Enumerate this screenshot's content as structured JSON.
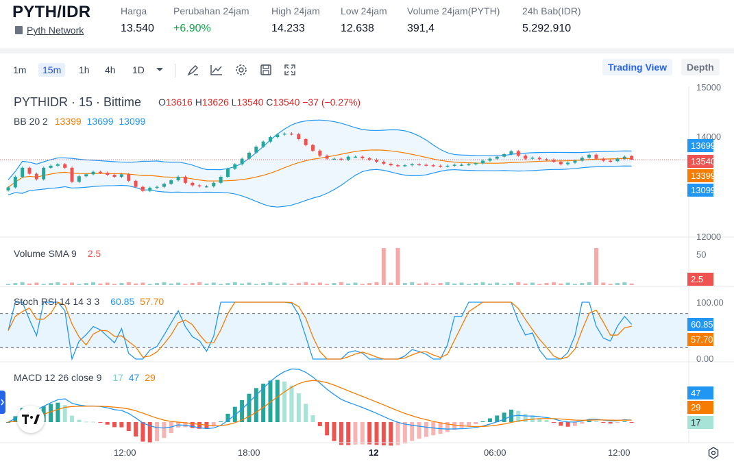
{
  "header": {
    "pair": "PYTH/IDR",
    "network": "Pyth Network",
    "stats": [
      {
        "label": "Harga",
        "value": "13.540",
        "color": "#111827"
      },
      {
        "label": "Perubahan 24jam",
        "value": "+6.90%",
        "color": "#16a34a"
      },
      {
        "label": "High 24jam",
        "value": "14.233",
        "color": "#111827"
      },
      {
        "label": "Low 24jam",
        "value": "12.638",
        "color": "#111827"
      },
      {
        "label": "Volume 24jam(PYTH)",
        "value": "391,4",
        "color": "#111827"
      },
      {
        "label": "24h Bab(IDR)",
        "value": "5.292.910",
        "color": "#111827"
      }
    ]
  },
  "toolbar": {
    "timeframes": [
      "1m",
      "15m",
      "1h",
      "4h",
      "1D"
    ],
    "active_timeframe": "15m",
    "tools": [
      "draw-pen-icon",
      "indicators-icon",
      "settings-gear-icon",
      "save-icon",
      "fullscreen-icon"
    ],
    "view_trading": "Trading View",
    "view_depth": "Depth"
  },
  "main_pane": {
    "symbol": "PYTHIDR · 15 · Bittime",
    "o_label": "O",
    "o": "13616",
    "h_label": "H",
    "h": "13626",
    "l_label": "L",
    "l": "13540",
    "c_label": "C",
    "c": "13540",
    "change": "−37 (−0.27%)",
    "bb_label": "BB 20 2",
    "bb_basis": "13399",
    "bb_upper": "13699",
    "bb_lower": "13099",
    "price_labels": {
      "upper": "13699",
      "last": "13540",
      "basis": "13399",
      "lower": "13099"
    },
    "axis": {
      "top": "15000",
      "mid": "14000",
      "bottom": "12000"
    }
  },
  "volume_pane": {
    "label": "Volume SMA 9",
    "value": "2.5",
    "axis_top": "50",
    "badge": "2.5"
  },
  "stoch_pane": {
    "label": "Stoch RSI 14 14 3 3",
    "k": "60.85",
    "d": "57.70",
    "axis_top": "100.00",
    "axis_bottom": "0.00",
    "badge_k": "60.85",
    "badge_d": "57.70"
  },
  "macd_pane": {
    "label": "MACD 12 26 close 9",
    "hist": "17",
    "macd": "47",
    "signal": "29",
    "badge_macd": "47",
    "badge_signal": "29",
    "badge_hist": "17"
  },
  "time_axis": [
    "12:00",
    "18:00",
    "12",
    "06:00",
    "12:00"
  ],
  "colors": {
    "up": "#26a69a",
    "down": "#ef5350",
    "bb": "#2196f3",
    "basis": "#f57c00",
    "accent": "#2563eb",
    "stoch_k": "#2196f3",
    "stoch_d": "#f57c00"
  },
  "chart_data": {
    "type": "candlestick",
    "timeframe": "15m",
    "ohlc_last": {
      "open": 13616,
      "high": 13626,
      "low": 13540,
      "close": 13540
    },
    "close_series": [
      12990,
      13200,
      13380,
      13260,
      13150,
      13380,
      13420,
      13450,
      13380,
      13100,
      13210,
      13250,
      13300,
      13280,
      13240,
      13200,
      13250,
      13120,
      13000,
      12920,
      12980,
      13000,
      13060,
      13130,
      13200,
      13080,
      13030,
      13010,
      13010,
      13080,
      13200,
      13360,
      13450,
      13560,
      13680,
      13800,
      13900,
      13990,
      14040,
      14060,
      14050,
      13950,
      13830,
      13720,
      13620,
      13560,
      13560,
      13540,
      13600,
      13600,
      13570,
      13540,
      13500,
      13460,
      13430,
      13420,
      13430,
      13450,
      13440,
      13430,
      13420,
      13410,
      13420,
      13440,
      13440,
      13450,
      13470,
      13520,
      13560,
      13600,
      13650,
      13710,
      13620,
      13560,
      13580,
      13550,
      13540,
      13500,
      13450,
      13480,
      13520,
      13580,
      13640,
      13560,
      13520,
      13510,
      13560,
      13600,
      13540
    ],
    "bollinger": {
      "period": 20,
      "stddev": 2,
      "basis": 13399,
      "upper": 13699,
      "lower": 13099
    },
    "volume_sma_9": 2.5,
    "stoch_rsi": {
      "k": 60.85,
      "d": 57.7,
      "range": [
        0,
        100
      ]
    },
    "macd": {
      "hist": 17,
      "macd": 47,
      "signal": 29
    }
  }
}
